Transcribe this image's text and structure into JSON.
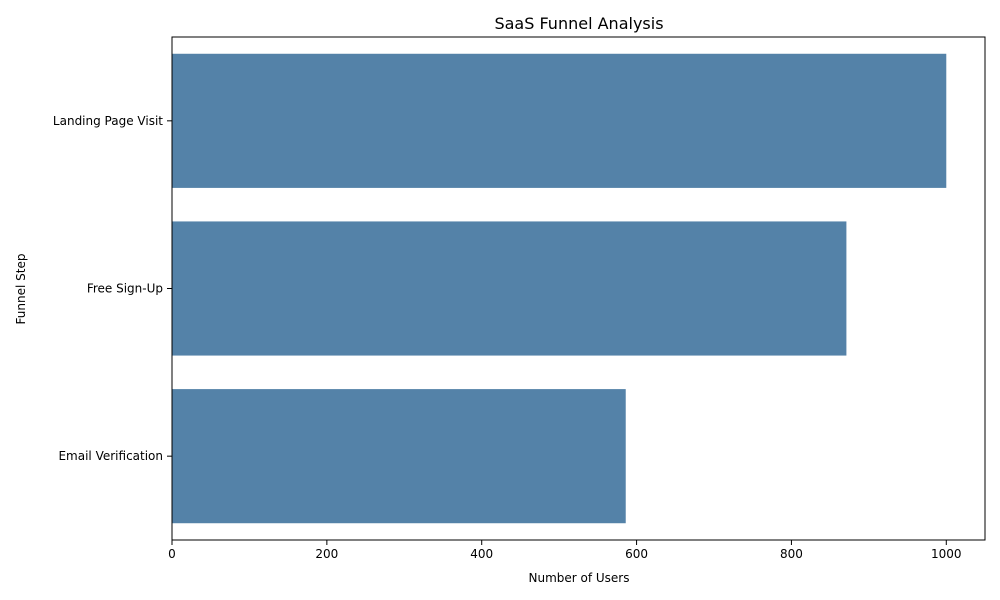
{
  "chart_data": {
    "type": "bar",
    "orientation": "horizontal",
    "title": "SaaS Funnel Analysis",
    "xlabel": "Number of Users",
    "ylabel": "Funnel Step",
    "categories": [
      "Landing Page Visit",
      "Free Sign-Up",
      "Email Verification"
    ],
    "values": [
      1000,
      871,
      586
    ],
    "xlim": [
      0,
      1050
    ],
    "xticks": [
      0,
      200,
      400,
      600,
      800,
      1000
    ],
    "grid": false,
    "legend": "none",
    "bar_color": "#5482a8"
  }
}
